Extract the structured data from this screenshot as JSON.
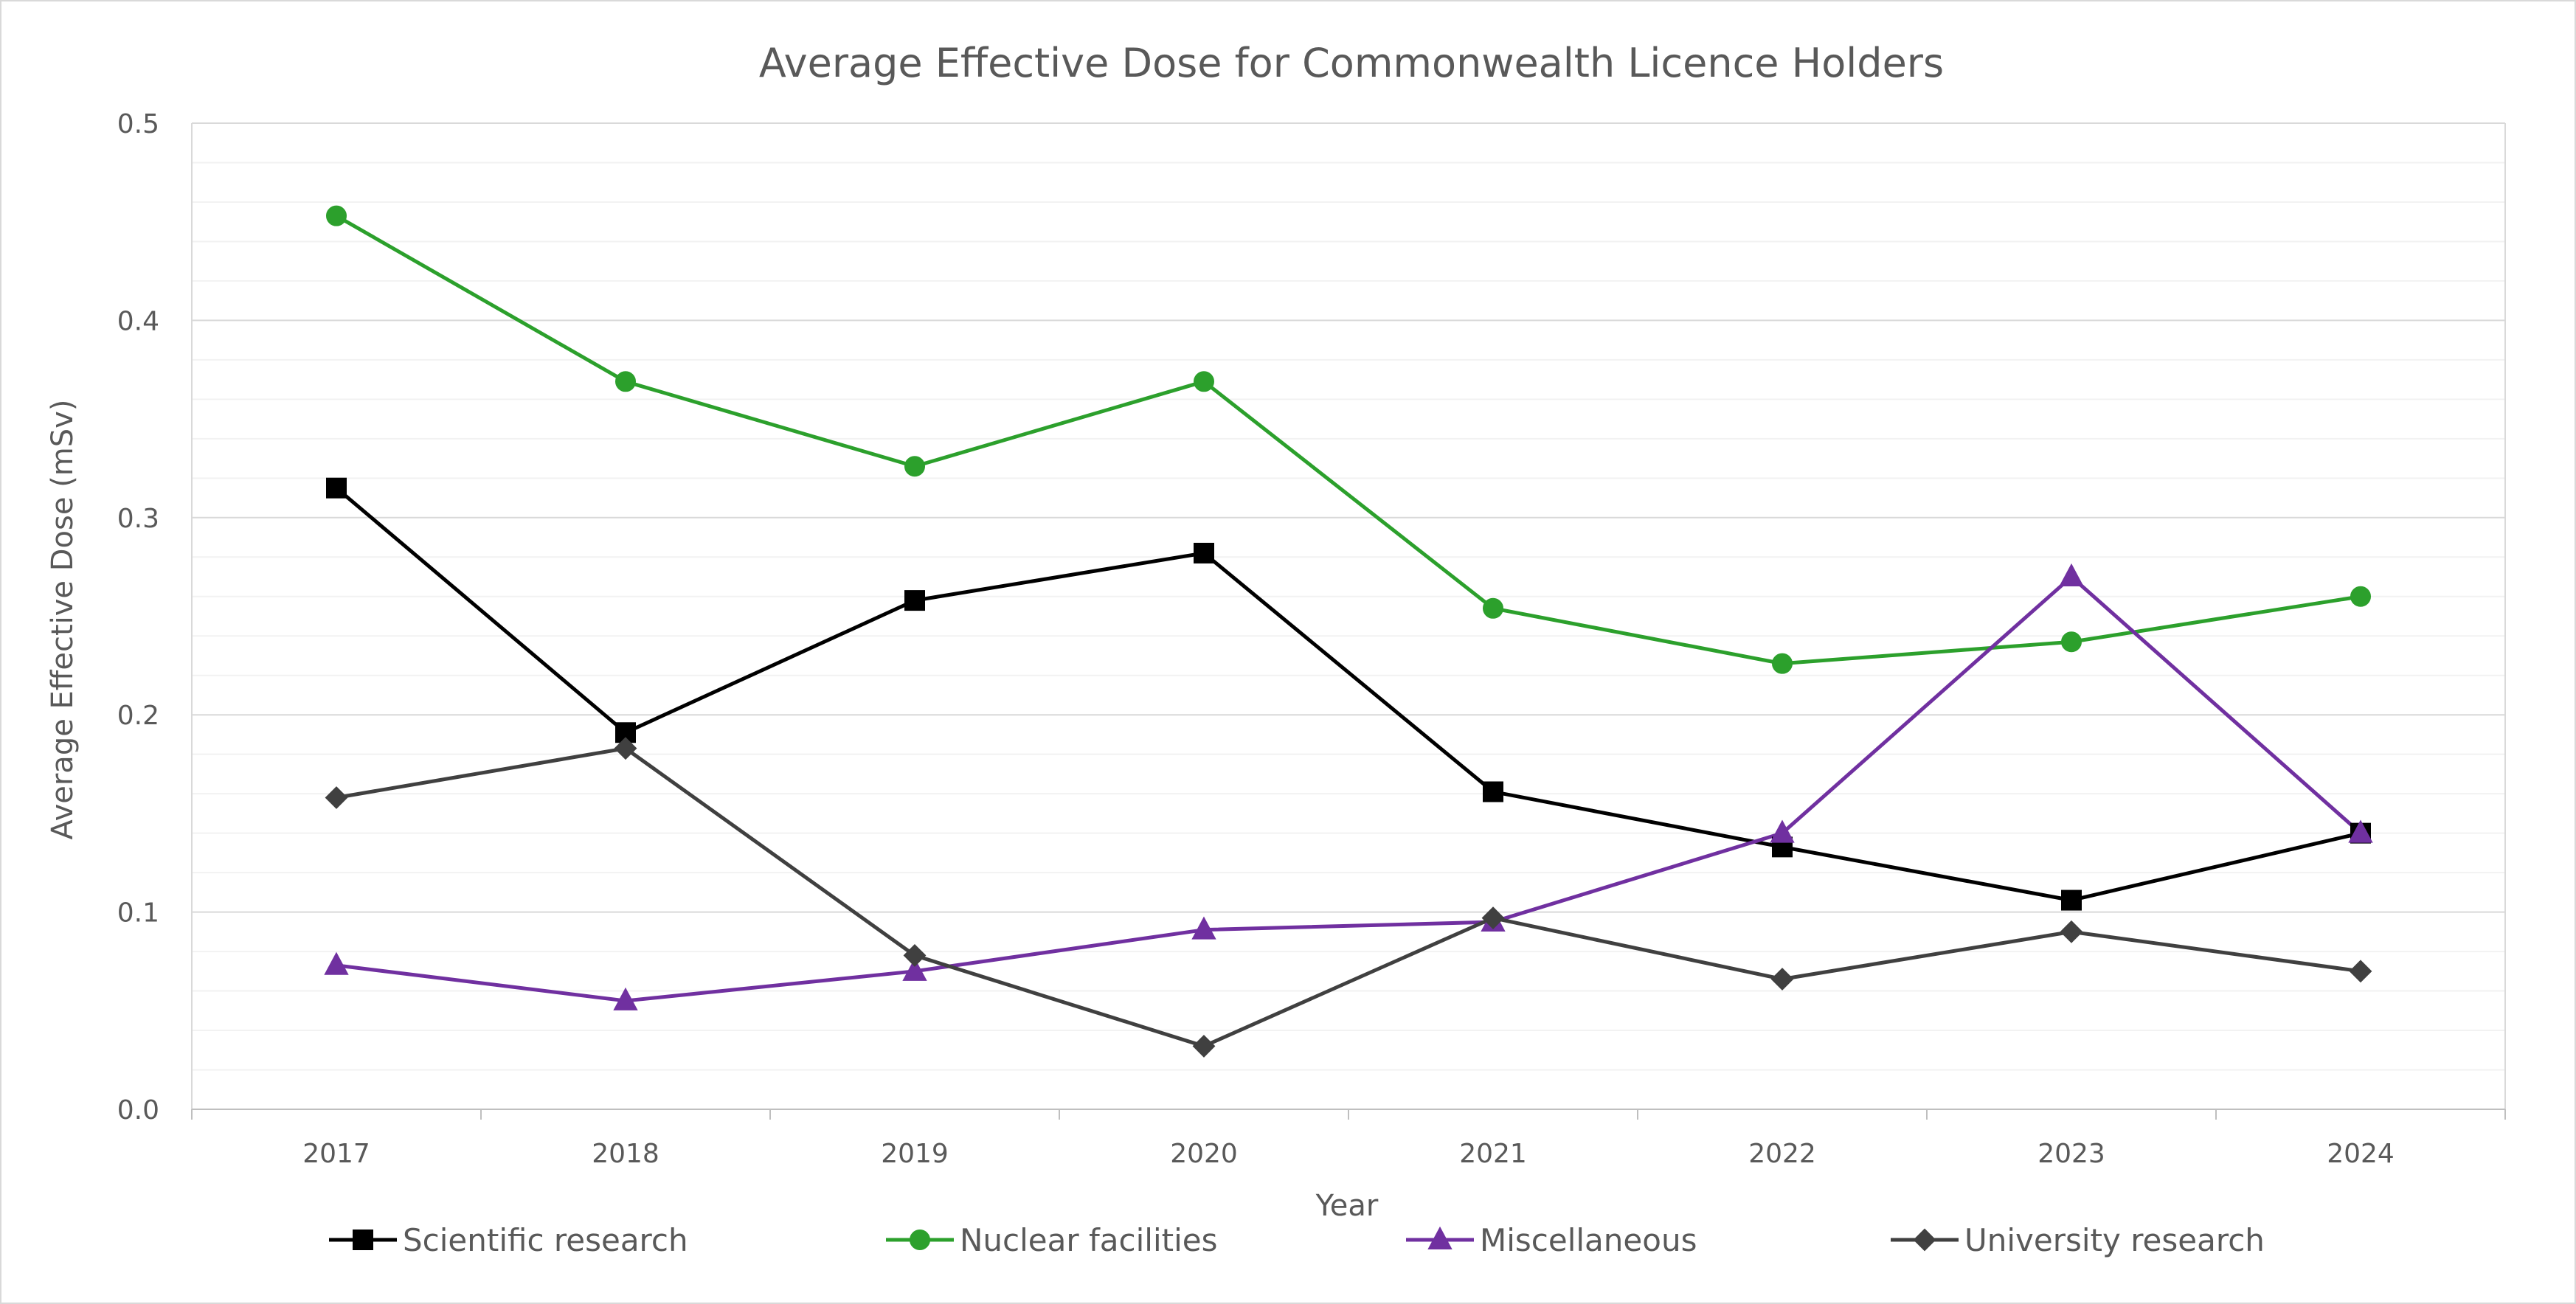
{
  "chart_data": {
    "type": "line",
    "title": "Average Effective Dose for Commonwealth Licence Holders",
    "xlabel": "Year",
    "ylabel": "Average Effective Dose (mSv)",
    "categories": [
      "2017",
      "2018",
      "2019",
      "2020",
      "2021",
      "2022",
      "2023",
      "2024"
    ],
    "ylim": [
      0,
      0.5
    ],
    "yticks": [
      "0.0",
      "0.1",
      "0.2",
      "0.3",
      "0.4",
      "0.5"
    ],
    "grid": "on",
    "legend": "bottom",
    "series": [
      {
        "name": "Scientific research",
        "color": "#000000",
        "marker": "square",
        "values": [
          0.315,
          0.191,
          0.258,
          0.282,
          0.161,
          0.133,
          0.106,
          0.14
        ]
      },
      {
        "name": "Nuclear facilities",
        "color": "#2ca02c",
        "marker": "circle",
        "values": [
          0.453,
          0.369,
          0.326,
          0.369,
          0.254,
          0.226,
          0.237,
          0.26
        ]
      },
      {
        "name": "Miscellaneous",
        "color": "#7030a0",
        "marker": "triangle",
        "values": [
          0.073,
          0.055,
          0.07,
          0.091,
          0.095,
          0.14,
          0.27,
          0.14
        ]
      },
      {
        "name": "University research",
        "color": "#404040",
        "marker": "diamond",
        "values": [
          0.158,
          0.183,
          0.078,
          0.032,
          0.097,
          0.066,
          0.09,
          0.07
        ]
      }
    ]
  }
}
